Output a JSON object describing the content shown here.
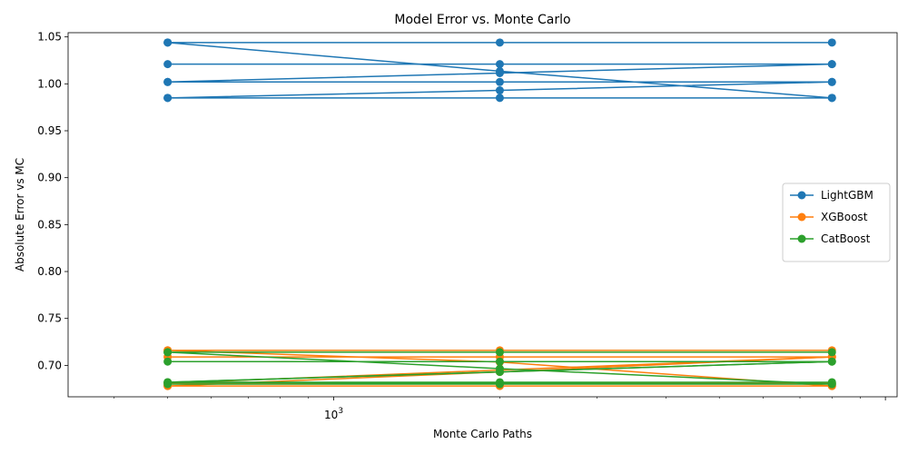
{
  "chart_data": {
    "type": "line",
    "title": "Model Error vs. Monte Carlo",
    "xlabel": "Monte Carlo Paths",
    "ylabel": "Absolute Error vs MC",
    "x_scale": "log",
    "x_tick_label": {
      "base": "10",
      "exp": "3"
    },
    "x_points": [
      500,
      2000,
      8000
    ],
    "xlim": [
      330,
      10500
    ],
    "ylim": [
      0.6665,
      1.0545
    ],
    "y_ticks": [
      0.7,
      0.75,
      0.8,
      0.85,
      0.9,
      0.95,
      1.0,
      1.05
    ],
    "grid": false,
    "legend_position": "center-right",
    "series": [
      {
        "name": "LightGBM",
        "color": "#1f77b4",
        "x": [
          500,
          2000,
          8000,
          500,
          2000,
          8000,
          500,
          2000,
          8000,
          500,
          2000,
          8000
        ],
        "values": [
          1.044,
          1.044,
          1.044,
          1.044,
          1.0135,
          0.985,
          0.985,
          0.985,
          0.985,
          0.985,
          0.993,
          1.002
        ]
      },
      {
        "name": "LightGBM",
        "color": "#1f77b4",
        "x": [
          500,
          2000,
          8000,
          500,
          2000,
          8000
        ],
        "values": [
          1.021,
          1.021,
          1.021,
          1.002,
          1.0115,
          1.021
        ]
      },
      {
        "name": "LightGBM",
        "color": "#1f77b4",
        "x": [
          500,
          2000,
          8000
        ],
        "values": [
          1.002,
          1.002,
          1.002
        ]
      },
      {
        "name": "XGBoost",
        "color": "#ff7f0e",
        "x": [
          500,
          2000,
          8000,
          500,
          2000,
          8000,
          500,
          2000,
          8000,
          500,
          2000,
          8000
        ],
        "values": [
          0.716,
          0.716,
          0.716,
          0.716,
          0.7035,
          0.678,
          0.678,
          0.678,
          0.678,
          0.678,
          0.693,
          0.709
        ]
      },
      {
        "name": "XGBoost",
        "color": "#ff7f0e",
        "x": [
          500,
          2000,
          8000,
          500,
          2000,
          8000
        ],
        "values": [
          0.709,
          0.709,
          0.709,
          0.681,
          0.681,
          0.681
        ]
      },
      {
        "name": "CatBoost",
        "color": "#2ca02c",
        "x": [
          500,
          2000,
          8000,
          500,
          2000,
          8000,
          500,
          2000,
          8000,
          500,
          2000,
          8000
        ],
        "values": [
          0.714,
          0.714,
          0.714,
          0.714,
          0.6965,
          0.68,
          0.68,
          0.68,
          0.68,
          0.682,
          0.693,
          0.704
        ]
      },
      {
        "name": "CatBoost",
        "color": "#2ca02c",
        "x": [
          500,
          2000,
          8000,
          500,
          2000,
          8000
        ],
        "values": [
          0.704,
          0.704,
          0.704,
          0.682,
          0.682,
          0.682
        ]
      }
    ],
    "legend": [
      {
        "name": "LightGBM",
        "color": "#1f77b4"
      },
      {
        "name": "XGBoost",
        "color": "#ff7f0e"
      },
      {
        "name": "CatBoost",
        "color": "#2ca02c"
      }
    ]
  }
}
